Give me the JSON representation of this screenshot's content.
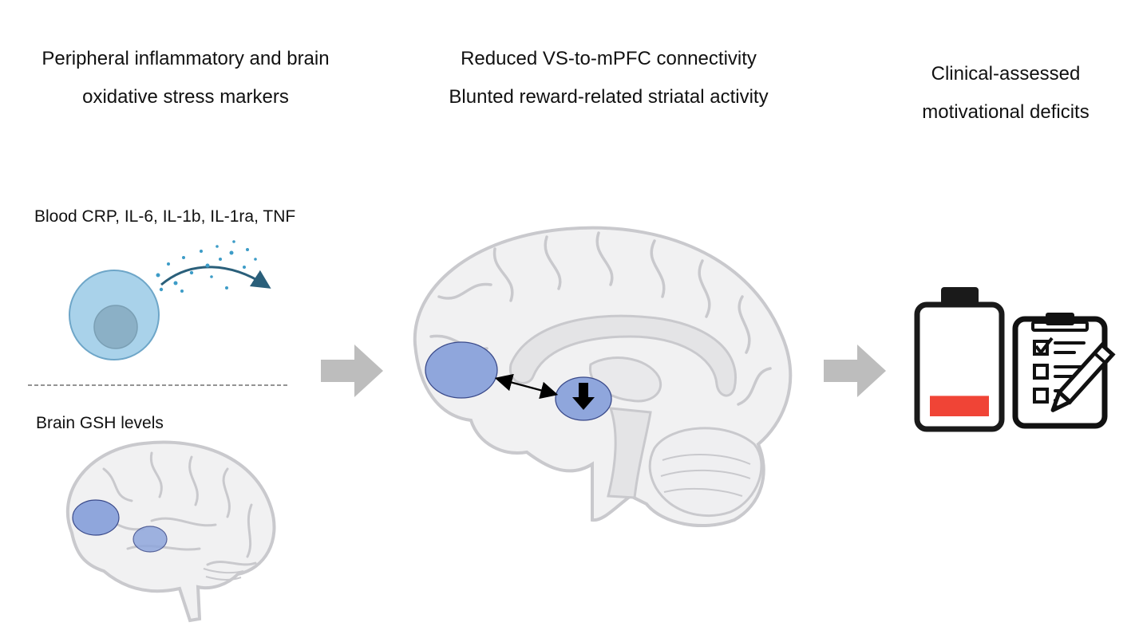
{
  "columns": [
    {
      "heading_lines": [
        "Peripheral inflammatory and brain",
        "oxidative stress markers"
      ],
      "panels": [
        {
          "label": "Blood CRP, IL-6, IL-1b, IL-1ra, TNF"
        },
        {
          "label": "Brain GSH levels"
        }
      ]
    },
    {
      "heading_lines": [
        "Reduced VS-to-mPFC connectivity",
        "Blunted reward-related striatal activity"
      ]
    },
    {
      "heading_lines": [
        "Clinical-assessed",
        "motivational deficits"
      ]
    }
  ],
  "colors": {
    "region_fill": "#8fa6dc",
    "region_stroke": "#3a4a8a",
    "brain_fill": "#f1f1f2",
    "brain_stroke": "#c9c9cd",
    "cell_fill": "#a9d2ea",
    "nucleus_fill": "#8bb0c6",
    "arrow_fill": "#bdbdbd",
    "battery_level_fill": "#f04436"
  },
  "battery_level": 0.2,
  "icons": [
    "immune-cell-icon",
    "cytokine-release-arrow-icon",
    "brain-icon",
    "flow-arrow-icon",
    "battery-icon",
    "clipboard-checklist-icon",
    "pencil-icon"
  ]
}
